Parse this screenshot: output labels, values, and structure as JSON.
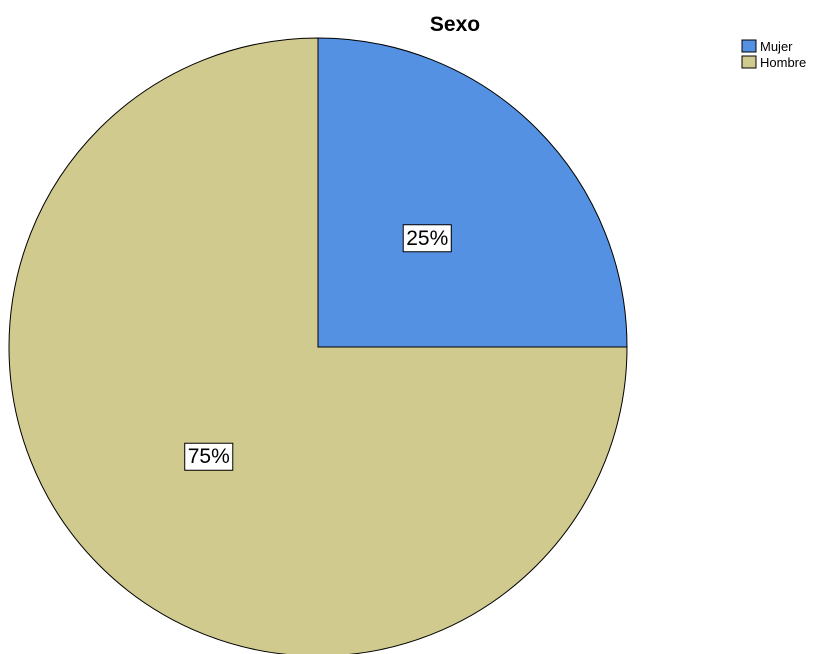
{
  "chart_data": {
    "type": "pie",
    "title": "Sexo",
    "categories": [
      "Mujer",
      "Hombre"
    ],
    "values": [
      25,
      75
    ],
    "labels": [
      "25%",
      "75%"
    ],
    "colors": [
      "#5591e3",
      "#d1ca8e"
    ],
    "start_angle_deg": 0,
    "direction": "clockwise",
    "legend": {
      "position": "top-right",
      "entries": [
        "Mujer",
        "Hombre"
      ]
    }
  }
}
